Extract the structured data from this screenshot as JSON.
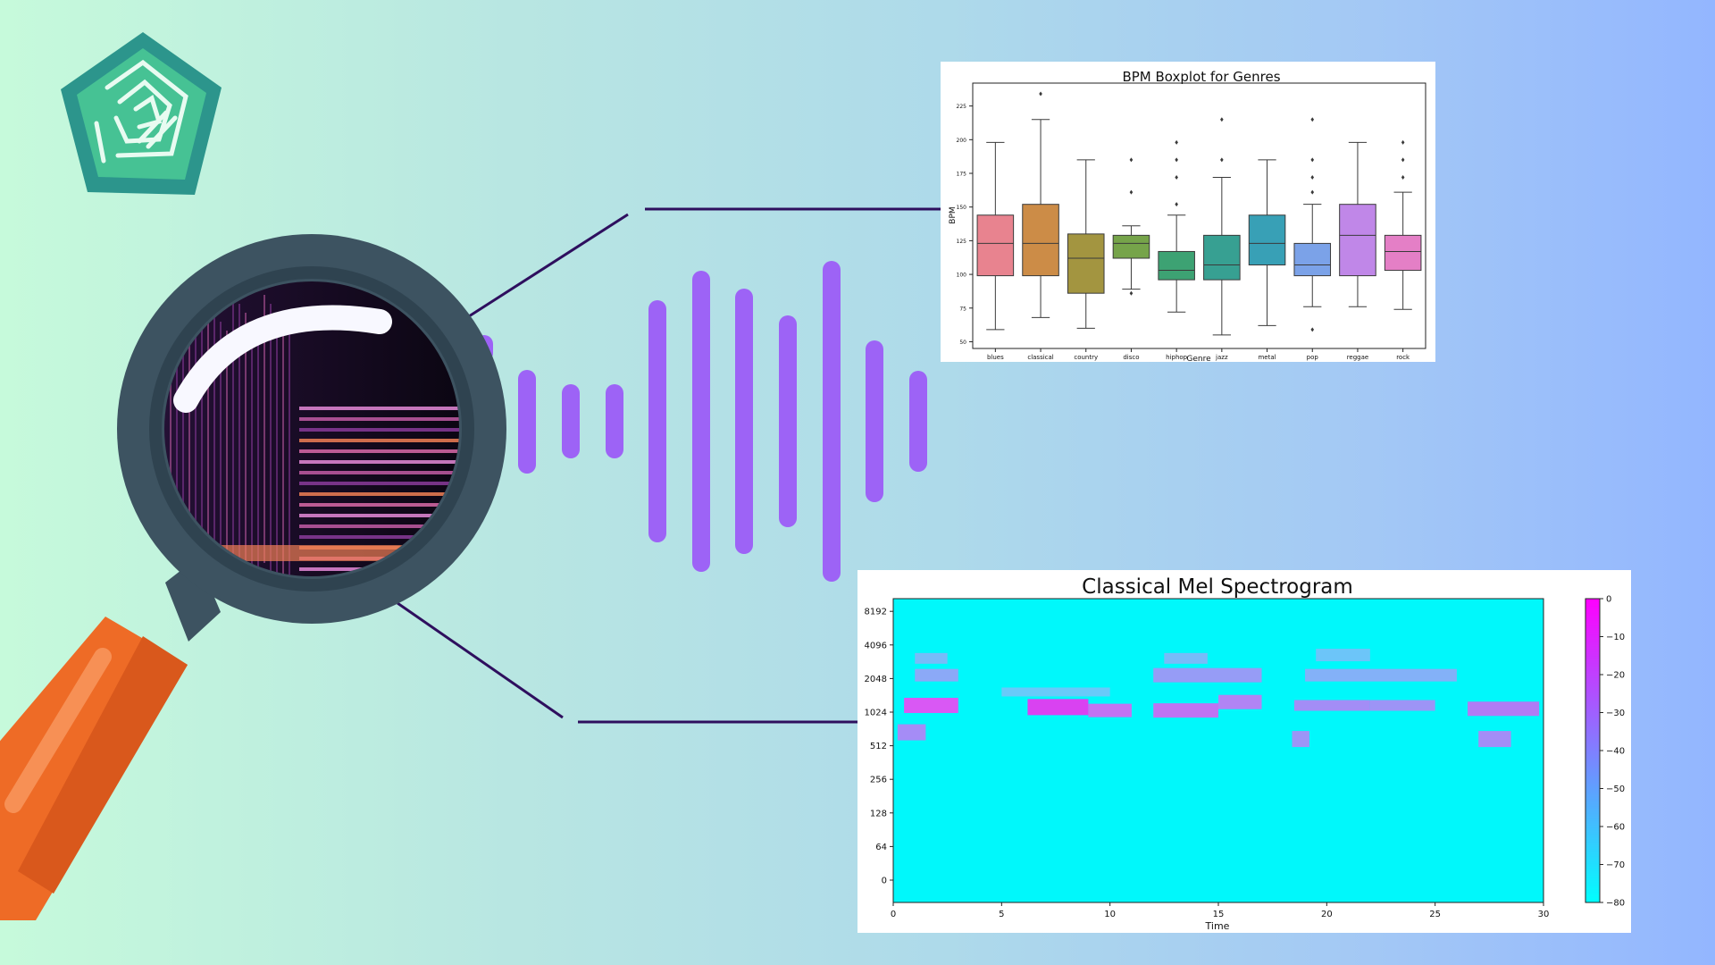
{
  "boxplot": {
    "title": "BPM Boxplot for Genres",
    "xlabel": "Genre",
    "ylabel": "BPM"
  },
  "spectrogram": {
    "title": "Classical Mel Spectrogram",
    "xlabel": "Time"
  },
  "colors": {
    "background_left": "#c6fadb",
    "background_right": "#93b6ff",
    "magnifier_frame": "#3d5361",
    "handle_orange": "#ee6b26",
    "sound_bars": "#9d63f6",
    "connector_lines": "#2e0f5e",
    "logo_teal": "#2c958c"
  },
  "icons": [
    "hexagon-maze-logo-icon",
    "magnifying-glass-icon",
    "sound-wave-icon"
  ],
  "chart_data": [
    {
      "type": "box",
      "title": "BPM Boxplot for Genres",
      "xlabel": "Genre",
      "ylabel": "BPM",
      "ylim": [
        45,
        242
      ],
      "yticks": [
        50,
        75,
        100,
        125,
        150,
        175,
        200,
        225
      ],
      "grid": false,
      "categories": [
        "blues",
        "classical",
        "country",
        "disco",
        "hiphop",
        "jazz",
        "metal",
        "pop",
        "reggae",
        "rock"
      ],
      "colors": [
        "#e8838f",
        "#cc8c47",
        "#a39540",
        "#76a44a",
        "#3da273",
        "#37a092",
        "#38a0b6",
        "#7ba2e8",
        "#c087e8",
        "#e47fc6"
      ],
      "boxes": [
        {
          "min": 59,
          "q1": 99,
          "median": 123,
          "q3": 144,
          "max": 198,
          "outliers": []
        },
        {
          "min": 68,
          "q1": 99,
          "median": 123,
          "q3": 152,
          "max": 215,
          "outliers": [
            234
          ]
        },
        {
          "min": 60,
          "q1": 86,
          "median": 112,
          "q3": 130,
          "max": 185,
          "outliers": []
        },
        {
          "min": 89,
          "q1": 112,
          "median": 123,
          "q3": 129,
          "max": 136,
          "outliers": [
            86,
            161,
            185
          ]
        },
        {
          "min": 72,
          "q1": 96,
          "median": 103,
          "q3": 117,
          "max": 144,
          "outliers": [
            152,
            172,
            185,
            198
          ]
        },
        {
          "min": 55,
          "q1": 96,
          "median": 107,
          "q3": 129,
          "max": 172,
          "outliers": [
            185,
            215
          ]
        },
        {
          "min": 62,
          "q1": 107,
          "median": 123,
          "q3": 144,
          "max": 185,
          "outliers": []
        },
        {
          "min": 76,
          "q1": 99,
          "median": 107,
          "q3": 123,
          "max": 152,
          "outliers": [
            59,
            161,
            172,
            185,
            215
          ]
        },
        {
          "min": 76,
          "q1": 99,
          "median": 129,
          "q3": 152,
          "max": 198,
          "outliers": []
        },
        {
          "min": 74,
          "q1": 103,
          "median": 117,
          "q3": 129,
          "max": 161,
          "outliers": [
            172,
            185,
            198
          ]
        }
      ]
    },
    {
      "type": "heatmap",
      "title": "Classical Mel Spectrogram",
      "xlabel": "Time",
      "ylabel": "",
      "xlim": [
        0,
        30
      ],
      "xticks": [
        0,
        5,
        10,
        15,
        20,
        25,
        30
      ],
      "yticks": [
        "0",
        "64",
        "128",
        "256",
        "512",
        "1024",
        "2048",
        "4096",
        "8192"
      ],
      "colorbar": {
        "min": -80,
        "max": 0,
        "ticks": [
          0,
          -10,
          -20,
          -30,
          -40,
          -50,
          -60,
          -70,
          -80
        ],
        "cmap": [
          "#00ffff",
          "#ff00ff"
        ]
      }
    }
  ]
}
